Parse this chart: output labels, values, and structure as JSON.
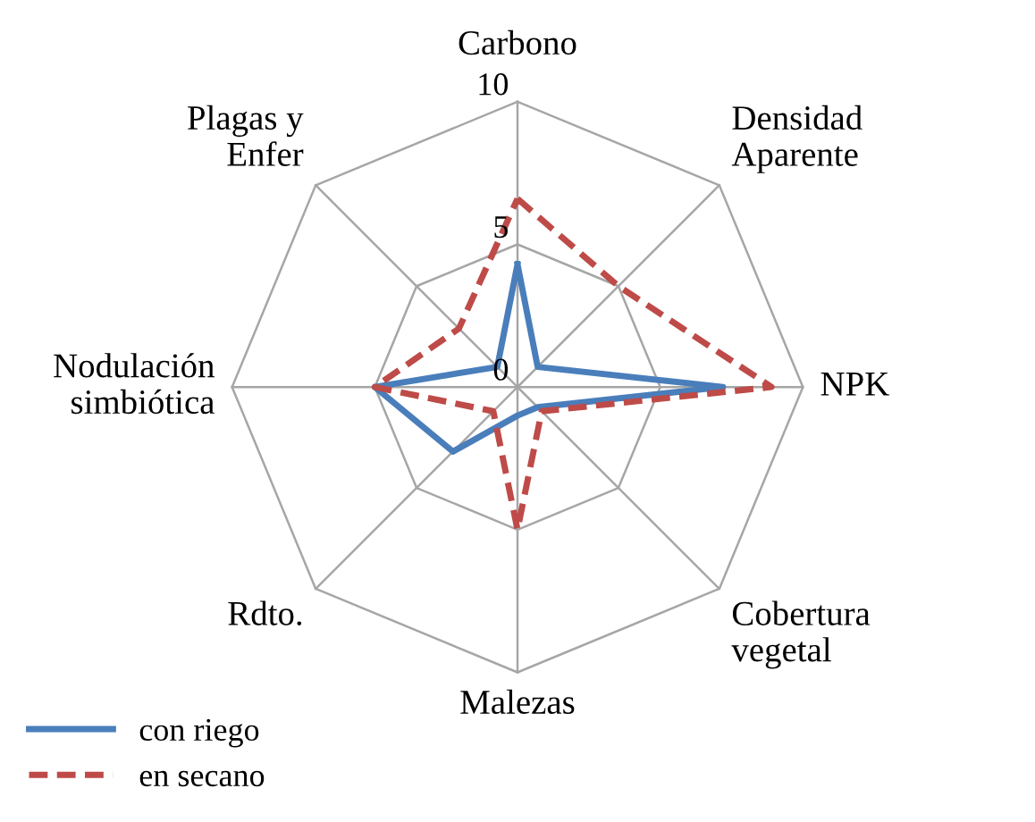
{
  "chart_data": {
    "type": "radar",
    "categories": [
      "Carbono",
      "Densidad\nAparente",
      "NPK",
      "Cobertura\nvegetal",
      "Malezas",
      "Rdto.",
      "Nodulación\nsimbiótica",
      "Plagas y\nEnfer"
    ],
    "series": [
      {
        "name": "con riego",
        "color": "#4a7ebb",
        "line_style": "solid",
        "values": [
          4.3,
          1.0,
          7.2,
          1.0,
          1.0,
          3.2,
          5,
          1.0
        ]
      },
      {
        "name": "en secano",
        "color": "#be4b48",
        "line_style": "dashed",
        "values": [
          6.6,
          5,
          8.9,
          1.2,
          5,
          1.2,
          5,
          2.9
        ]
      }
    ],
    "ylim": [
      0,
      10
    ],
    "yticks": [
      0,
      5,
      10
    ],
    "legend": "bottom left"
  }
}
